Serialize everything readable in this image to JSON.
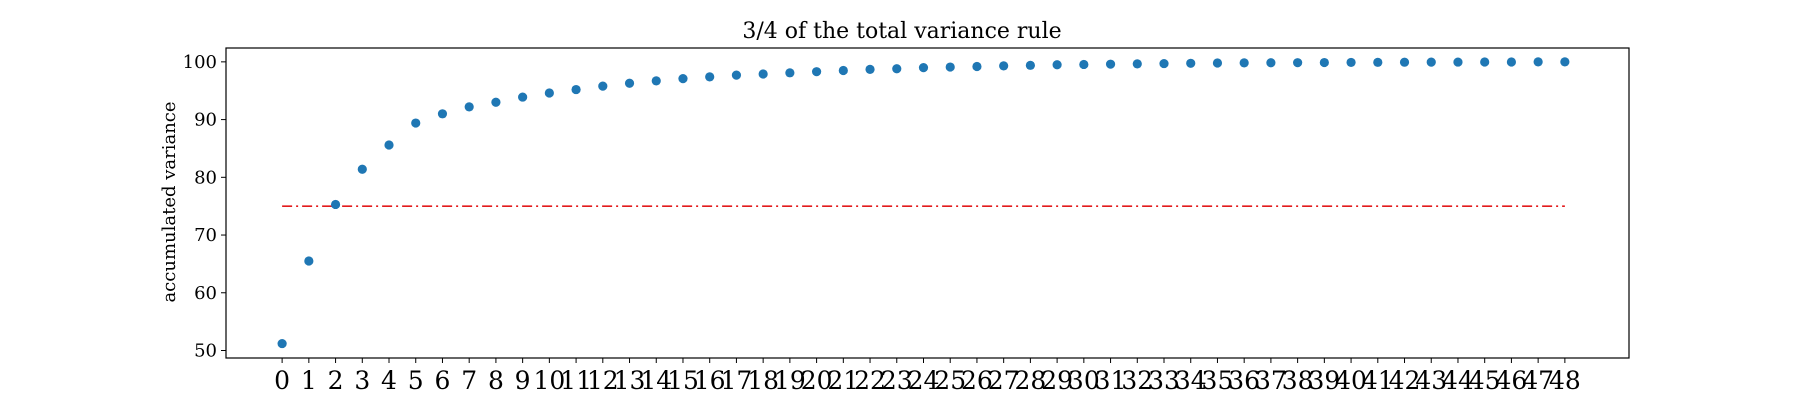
{
  "chart_data": {
    "type": "scatter",
    "title": "3/4 of the total variance rule",
    "xlabel": "",
    "ylabel": "accumulated variance",
    "x": [
      0,
      1,
      2,
      3,
      4,
      5,
      6,
      7,
      8,
      9,
      10,
      11,
      12,
      13,
      14,
      15,
      16,
      17,
      18,
      19,
      20,
      21,
      22,
      23,
      24,
      25,
      26,
      27,
      28,
      29,
      30,
      31,
      32,
      33,
      34,
      35,
      36,
      37,
      38,
      39,
      40,
      41,
      42,
      43,
      44,
      45,
      46,
      47,
      48
    ],
    "values": [
      51.2,
      65.5,
      75.3,
      81.4,
      85.6,
      89.4,
      91.0,
      92.2,
      93.0,
      93.9,
      94.6,
      95.2,
      95.8,
      96.3,
      96.7,
      97.1,
      97.4,
      97.7,
      97.9,
      98.1,
      98.3,
      98.5,
      98.7,
      98.8,
      99.0,
      99.1,
      99.2,
      99.3,
      99.4,
      99.5,
      99.55,
      99.6,
      99.65,
      99.7,
      99.75,
      99.8,
      99.82,
      99.84,
      99.86,
      99.88,
      99.9,
      99.92,
      99.94,
      99.95,
      99.96,
      99.97,
      99.98,
      99.99,
      100.0
    ],
    "x_tick_labels": [
      "0",
      "1",
      "2",
      "3",
      "4",
      "5",
      "6",
      "7",
      "8",
      "9",
      "10",
      "11",
      "12",
      "13",
      "14",
      "15",
      "16",
      "17",
      "18",
      "19",
      "20",
      "21",
      "22",
      "23",
      "24",
      "25",
      "26",
      "27",
      "28",
      "29",
      "30",
      "31",
      "32",
      "33",
      "34",
      "35",
      "36",
      "37",
      "38",
      "39",
      "40",
      "41",
      "42",
      "43",
      "44",
      "45",
      "46",
      "47",
      "48"
    ],
    "y_ticks": [
      50,
      60,
      70,
      80,
      90,
      100
    ],
    "ylim": [
      48.7,
      102.4
    ],
    "xlim": [
      -2.1,
      50.4
    ],
    "threshold": {
      "value": 75,
      "x_start": 0,
      "x_end": 48,
      "style": "dash-dot",
      "color": "#e31a1c"
    },
    "marker_color": "#1f77b4",
    "grid": false,
    "legend": "none"
  }
}
